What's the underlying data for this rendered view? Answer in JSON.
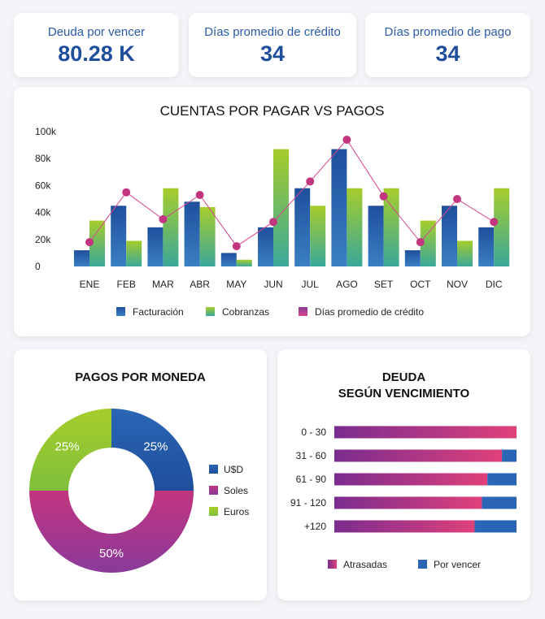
{
  "kpis": [
    {
      "label": "Deuda por vencer",
      "value": "80.28 K"
    },
    {
      "label": "Días promedio de crédito",
      "value": "34"
    },
    {
      "label": "Días promedio de pago",
      "value": "34"
    }
  ],
  "colors": {
    "facturacion_top": "#1f4f9c",
    "facturacion_bottom": "#3a7fc4",
    "cobranzas_top": "#a6cd2c",
    "cobranzas_bottom": "#3aa89a",
    "dias_line": "#d6458f",
    "dias_point": "#c2357f",
    "usd": "#1f4f9c",
    "soles": "#c2357f",
    "euros": "#a6cd2c",
    "atrasadas_left": "#7a2c8f",
    "atrasadas_right": "#e0417a",
    "por_vencer": "#2a64b5"
  },
  "chart_data": [
    {
      "type": "bar",
      "title": "CUENTAS POR PAGAR VS PAGOS",
      "categories": [
        "ENE",
        "FEB",
        "MAR",
        "ABR",
        "MAY",
        "JUN",
        "JUL",
        "AGO",
        "SET",
        "OCT",
        "NOV",
        "DIC"
      ],
      "y_ticks": [
        "0",
        "20k",
        "40k",
        "60k",
        "80k",
        "100k"
      ],
      "ylim": [
        0,
        100000
      ],
      "series": [
        {
          "name": "Facturación",
          "type": "bar",
          "values": [
            12000,
            45000,
            29000,
            48000,
            10000,
            29000,
            58000,
            87000,
            45000,
            12000,
            45000,
            29000
          ]
        },
        {
          "name": "Cobranzas",
          "type": "bar",
          "values": [
            34000,
            19000,
            58000,
            44000,
            5000,
            87000,
            45000,
            58000,
            58000,
            34000,
            19000,
            58000
          ]
        },
        {
          "name": "Días promedio de crédito",
          "type": "line",
          "values": [
            18000,
            55000,
            35000,
            53000,
            15000,
            33000,
            63000,
            94000,
            52000,
            18000,
            50000,
            33000
          ]
        }
      ],
      "legend_position": "bottom"
    },
    {
      "type": "pie",
      "title": "PAGOS POR MONEDA",
      "categories": [
        "U$D",
        "Soles",
        "Euros"
      ],
      "values": [
        25,
        50,
        25
      ],
      "labels": [
        "25%",
        "50%",
        "25%"
      ],
      "legend_position": "right"
    },
    {
      "type": "bar",
      "title_lines": [
        "DEUDA",
        "SEGÚN VENCIMIENTO"
      ],
      "orientation": "horizontal",
      "stacked": true,
      "categories": [
        "0 - 30",
        "31 - 60",
        "61 - 90",
        "91 - 120",
        "+120"
      ],
      "series": [
        {
          "name": "Atrasadas",
          "values": [
            100,
            92,
            84,
            81,
            77
          ]
        },
        {
          "name": "Por vencer",
          "values": [
            0,
            8,
            16,
            19,
            23
          ]
        }
      ],
      "legend_position": "bottom"
    }
  ]
}
